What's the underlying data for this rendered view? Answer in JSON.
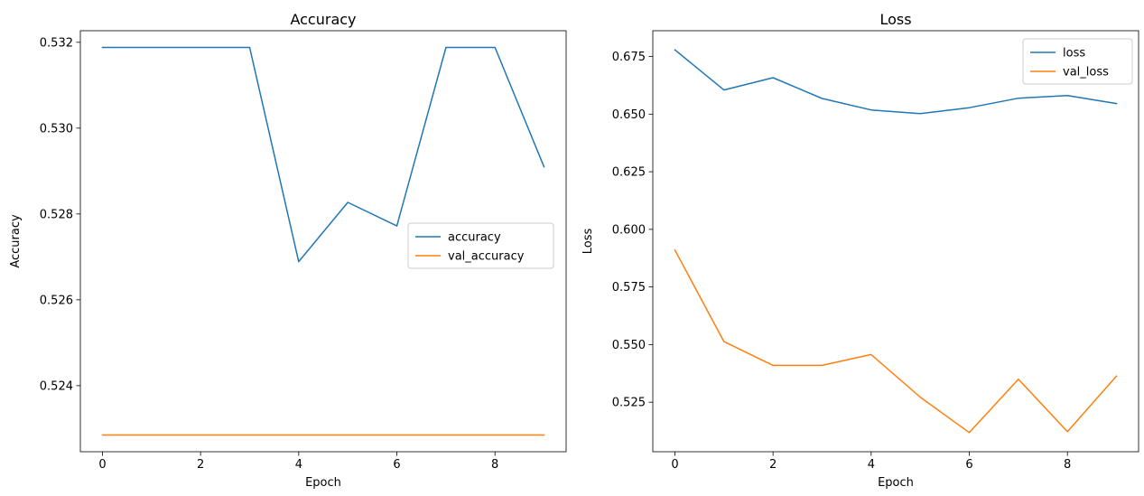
{
  "chart_data": [
    {
      "type": "line",
      "title": "Accuracy",
      "xlabel": "Epoch",
      "ylabel": "Accuracy",
      "xlim": [
        -0.45,
        9.45
      ],
      "ylim": [
        0.52246,
        0.53227
      ],
      "xticks": [
        0,
        2,
        4,
        6,
        8
      ],
      "xtick_labels": [
        "0",
        "2",
        "4",
        "6",
        "8"
      ],
      "yticks": [
        0.524,
        0.526,
        0.528,
        0.53,
        0.532
      ],
      "ytick_labels": [
        "0.524",
        "0.526",
        "0.528",
        "0.530",
        "0.532"
      ],
      "grid": false,
      "legend_position": "center-right",
      "x": [
        0,
        1,
        2,
        3,
        4,
        5,
        6,
        7,
        8,
        9
      ],
      "series": [
        {
          "name": "accuracy",
          "color": "#1f77b4",
          "values": [
            0.53188,
            0.53188,
            0.53188,
            0.53188,
            0.52689,
            0.52827,
            0.52772,
            0.53188,
            0.53188,
            0.5291
          ]
        },
        {
          "name": "val_accuracy",
          "color": "#ff7f0e",
          "values": [
            0.52285,
            0.52285,
            0.52285,
            0.52285,
            0.52285,
            0.52285,
            0.52285,
            0.52285,
            0.52285,
            0.52285
          ]
        }
      ]
    },
    {
      "type": "line",
      "title": "Loss",
      "xlabel": "Epoch",
      "ylabel": "Loss",
      "xlim": [
        -0.45,
        9.45
      ],
      "ylim": [
        0.5035,
        0.6862
      ],
      "xticks": [
        0,
        2,
        4,
        6,
        8
      ],
      "xtick_labels": [
        "0",
        "2",
        "4",
        "6",
        "8"
      ],
      "yticks": [
        0.525,
        0.55,
        0.575,
        0.6,
        0.625,
        0.65,
        0.675
      ],
      "ytick_labels": [
        "0.525",
        "0.550",
        "0.575",
        "0.600",
        "0.625",
        "0.650",
        "0.675"
      ],
      "grid": false,
      "legend_position": "top-right",
      "x": [
        0,
        1,
        2,
        3,
        4,
        5,
        6,
        7,
        8,
        9
      ],
      "series": [
        {
          "name": "loss",
          "color": "#1f77b4",
          "values": [
            0.6779,
            0.6605,
            0.6658,
            0.6568,
            0.6518,
            0.6502,
            0.6528,
            0.6569,
            0.6581,
            0.6546
          ]
        },
        {
          "name": "val_loss",
          "color": "#ff7f0e",
          "values": [
            0.591,
            0.5513,
            0.541,
            0.541,
            0.5457,
            0.5272,
            0.5118,
            0.535,
            0.5122,
            0.5363
          ]
        }
      ]
    }
  ]
}
